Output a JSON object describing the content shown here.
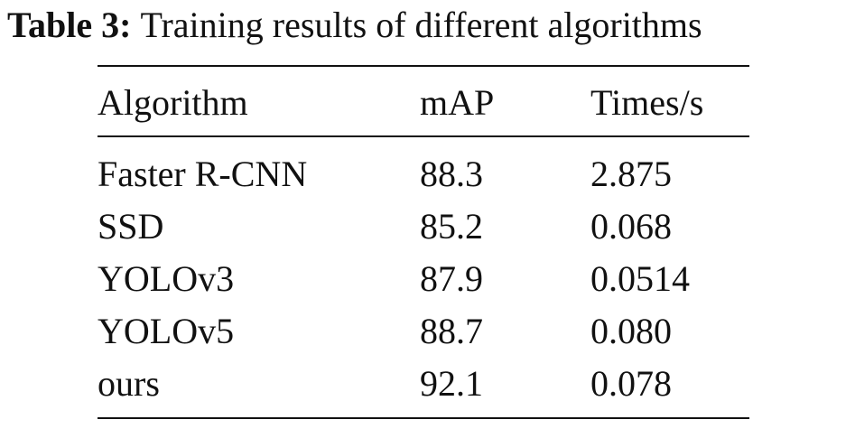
{
  "caption": {
    "label": "Table 3:",
    "text": "Training results of different algorithms"
  },
  "table": {
    "headers": [
      "Algorithm",
      "mAP",
      "Times/s"
    ],
    "rows": [
      [
        "Faster R-CNN",
        "88.3",
        "2.875"
      ],
      [
        "SSD",
        "85.2",
        "0.068"
      ],
      [
        "YOLOv3",
        "87.9",
        "0.0514"
      ],
      [
        "YOLOv5",
        "88.7",
        "0.080"
      ],
      [
        "ours",
        "92.1",
        "0.078"
      ]
    ]
  }
}
